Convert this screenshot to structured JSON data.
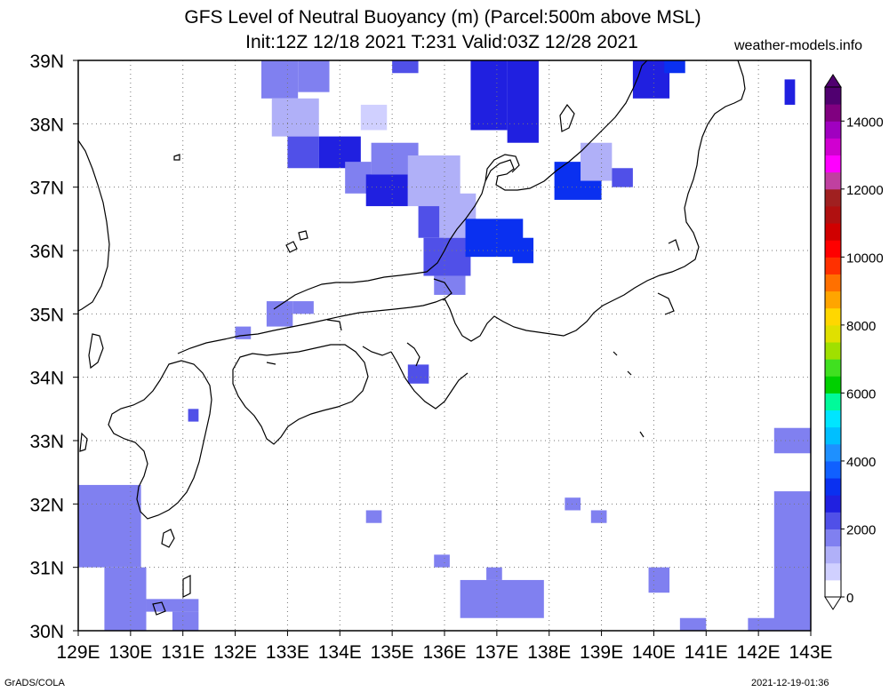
{
  "title_line1": "GFS Level of Neutral Buoyancy (m) (Parcel:500m above MSL)",
  "title_line2": "Init:12Z 12/18 2021 T:231 Valid:03Z 12/28 2021",
  "site": "weather-models.info",
  "footer_left": "GrADS/COLA",
  "footer_right": "2021-12-19-01:36",
  "map": {
    "lon_range": [
      129,
      143
    ],
    "lat_range": [
      30,
      39
    ],
    "lon_labels": [
      "129E",
      "130E",
      "131E",
      "132E",
      "133E",
      "134E",
      "135E",
      "136E",
      "137E",
      "138E",
      "139E",
      "140E",
      "141E",
      "142E",
      "143E"
    ],
    "lat_labels": [
      "30N",
      "31N",
      "32N",
      "33N",
      "34N",
      "35N",
      "36N",
      "37N",
      "38N",
      "39N"
    ],
    "grid": "dotted",
    "field_cells": [
      {
        "lon": [
          132.5,
          133.2
        ],
        "lat": [
          38.4,
          39.0
        ],
        "value": 1500
      },
      {
        "lon": [
          133.2,
          133.8
        ],
        "lat": [
          38.5,
          39.0
        ],
        "value": 1700
      },
      {
        "lon": [
          132.7,
          133.6
        ],
        "lat": [
          37.8,
          38.4
        ],
        "value": 1300
      },
      {
        "lon": [
          133.0,
          133.6
        ],
        "lat": [
          37.3,
          37.8
        ],
        "value": 2000
      },
      {
        "lon": [
          133.6,
          134.4
        ],
        "lat": [
          37.3,
          37.8
        ],
        "value": 2500
      },
      {
        "lon": [
          134.1,
          134.6
        ],
        "lat": [
          36.9,
          37.4
        ],
        "value": 1800
      },
      {
        "lon": [
          134.6,
          135.5
        ],
        "lat": [
          37.2,
          37.7
        ],
        "value": 1500
      },
      {
        "lon": [
          134.5,
          135.3
        ],
        "lat": [
          36.7,
          37.2
        ],
        "value": 2700
      },
      {
        "lon": [
          135.3,
          136.3
        ],
        "lat": [
          36.7,
          37.5
        ],
        "value": 1200
      },
      {
        "lon": [
          135.5,
          136.0
        ],
        "lat": [
          36.2,
          36.7
        ],
        "value": 2000
      },
      {
        "lon": [
          135.9,
          136.6
        ],
        "lat": [
          36.2,
          36.9
        ],
        "value": 1000
      },
      {
        "lon": [
          135.6,
          136.5
        ],
        "lat": [
          35.6,
          36.2
        ],
        "value": 2300
      },
      {
        "lon": [
          135.8,
          136.4
        ],
        "lat": [
          35.3,
          35.6
        ],
        "value": 1500
      },
      {
        "lon": [
          136.4,
          137.5
        ],
        "lat": [
          35.9,
          36.5
        ],
        "value": 3300
      },
      {
        "lon": [
          137.3,
          137.7
        ],
        "lat": [
          35.8,
          36.2
        ],
        "value": 3200
      },
      {
        "lon": [
          136.5,
          137.2
        ],
        "lat": [
          37.9,
          39.0
        ],
        "value": 2500
      },
      {
        "lon": [
          137.2,
          137.8
        ],
        "lat": [
          37.7,
          39.0
        ],
        "value": 2700
      },
      {
        "lon": [
          134.4,
          134.9
        ],
        "lat": [
          37.9,
          38.3
        ],
        "value": 800
      },
      {
        "lon": [
          135.0,
          135.5
        ],
        "lat": [
          38.8,
          39.0
        ],
        "value": 2000
      },
      {
        "lon": [
          138.1,
          139.0
        ],
        "lat": [
          36.8,
          37.4
        ],
        "value": 3000
      },
      {
        "lon": [
          138.6,
          139.2
        ],
        "lat": [
          37.1,
          37.7
        ],
        "value": 1200
      },
      {
        "lon": [
          139.2,
          139.6
        ],
        "lat": [
          37.0,
          37.3
        ],
        "value": 2200
      },
      {
        "lon": [
          139.6,
          140.3
        ],
        "lat": [
          38.4,
          39.0
        ],
        "value": 2500
      },
      {
        "lon": [
          140.2,
          140.6
        ],
        "lat": [
          38.8,
          39.0
        ],
        "value": 3000
      },
      {
        "lon": [
          142.5,
          142.7
        ],
        "lat": [
          38.3,
          38.7
        ],
        "value": 2800
      },
      {
        "lon": [
          132.6,
          133.1
        ],
        "lat": [
          34.8,
          35.2
        ],
        "value": 1800
      },
      {
        "lon": [
          133.1,
          133.5
        ],
        "lat": [
          35.0,
          35.2
        ],
        "value": 1600
      },
      {
        "lon": [
          132.0,
          132.3
        ],
        "lat": [
          34.6,
          34.8
        ],
        "value": 1500
      },
      {
        "lon": [
          135.3,
          135.7
        ],
        "lat": [
          33.9,
          34.2
        ],
        "value": 2000
      },
      {
        "lon": [
          131.1,
          131.3
        ],
        "lat": [
          33.3,
          33.5
        ],
        "value": 2000
      },
      {
        "lon": [
          129.0,
          130.2
        ],
        "lat": [
          31.0,
          32.3
        ],
        "value": 1800
      },
      {
        "lon": [
          129.5,
          130.3
        ],
        "lat": [
          30.0,
          31.0
        ],
        "value": 1600
      },
      {
        "lon": [
          130.3,
          131.3
        ],
        "lat": [
          30.3,
          30.5
        ],
        "value": 1700
      },
      {
        "lon": [
          130.8,
          131.3
        ],
        "lat": [
          30.0,
          30.3
        ],
        "value": 1800
      },
      {
        "lon": [
          134.5,
          134.8
        ],
        "lat": [
          31.7,
          31.9
        ],
        "value": 1700
      },
      {
        "lon": [
          135.8,
          136.1
        ],
        "lat": [
          31.0,
          31.2
        ],
        "value": 1800
      },
      {
        "lon": [
          136.3,
          137.9
        ],
        "lat": [
          30.2,
          30.8
        ],
        "value": 1700
      },
      {
        "lon": [
          136.8,
          137.1
        ],
        "lat": [
          30.8,
          31.0
        ],
        "value": 1800
      },
      {
        "lon": [
          138.3,
          138.6
        ],
        "lat": [
          31.9,
          32.1
        ],
        "value": 1700
      },
      {
        "lon": [
          138.8,
          139.1
        ],
        "lat": [
          31.7,
          31.9
        ],
        "value": 1600
      },
      {
        "lon": [
          139.9,
          140.3
        ],
        "lat": [
          30.6,
          31.0
        ],
        "value": 1800
      },
      {
        "lon": [
          140.5,
          141.0
        ],
        "lat": [
          30.0,
          30.2
        ],
        "value": 1800
      },
      {
        "lon": [
          141.8,
          142.5
        ],
        "lat": [
          30.0,
          30.2
        ],
        "value": 1700
      },
      {
        "lon": [
          142.3,
          143.0
        ],
        "lat": [
          30.0,
          32.2
        ],
        "value": 1600
      },
      {
        "lon": [
          142.3,
          143.0
        ],
        "lat": [
          32.8,
          33.2
        ],
        "value": 1800
      }
    ]
  },
  "colorbar": {
    "labels": [
      "0",
      "2000",
      "4000",
      "6000",
      "8000",
      "10000",
      "12000",
      "14000"
    ],
    "min": 0,
    "max": 15000,
    "colors": [
      "#ffffff",
      "#d0d0ff",
      "#b0b0f8",
      "#8080f0",
      "#5050e8",
      "#2020e0",
      "#0a30f0",
      "#1060ff",
      "#1e90ff",
      "#00bfff",
      "#00e5ff",
      "#00fa9a",
      "#00d000",
      "#40e020",
      "#a0e000",
      "#e0e000",
      "#ffd700",
      "#ffa500",
      "#ff7000",
      "#ff3000",
      "#ff0000",
      "#d00000",
      "#b01010",
      "#a02020",
      "#c040a0",
      "#ff00ff",
      "#d000d0",
      "#a000c0",
      "#800080",
      "#500070"
    ]
  }
}
